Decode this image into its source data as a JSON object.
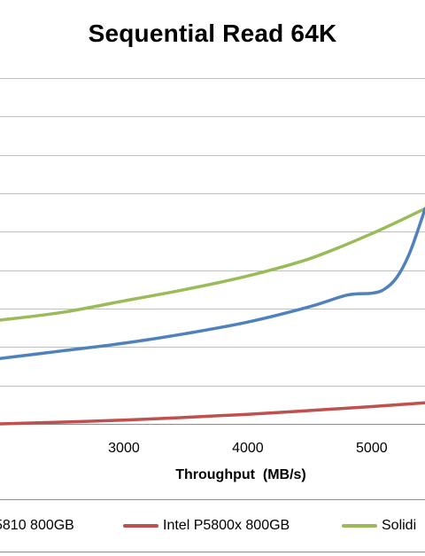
{
  "chart_data": {
    "type": "line",
    "title": "Sequential Read 64K",
    "xlabel": "Throughput  (MB/s)",
    "ylabel": "",
    "x_ticks": [
      3000,
      4000,
      5000
    ],
    "xlim": [
      2000,
      5430
    ],
    "ylim": [
      0,
      9
    ],
    "grid": true,
    "legend_position": "bottom",
    "series": [
      {
        "name": "5810 800GB",
        "color": "#4f81bd",
        "x": [
          2000,
          2500,
          3000,
          3500,
          4000,
          4500,
          4800,
          5000,
          5100,
          5200,
          5300,
          5400,
          5430
        ],
        "y": [
          1.7,
          1.9,
          2.1,
          2.35,
          2.65,
          3.05,
          3.35,
          3.4,
          3.5,
          3.8,
          4.4,
          5.3,
          5.6
        ]
      },
      {
        "name": "Intel P5800x 800GB",
        "color": "#c0504d",
        "x": [
          2000,
          3000,
          4000,
          5000,
          5430
        ],
        "y": [
          0.0,
          0.1,
          0.25,
          0.45,
          0.55
        ]
      },
      {
        "name": "Solidi",
        "color": "#9bbb59",
        "x": [
          2000,
          2500,
          3000,
          3500,
          4000,
          4500,
          5000,
          5430
        ],
        "y": [
          2.7,
          2.9,
          3.2,
          3.5,
          3.85,
          4.3,
          4.95,
          5.6
        ]
      }
    ]
  }
}
